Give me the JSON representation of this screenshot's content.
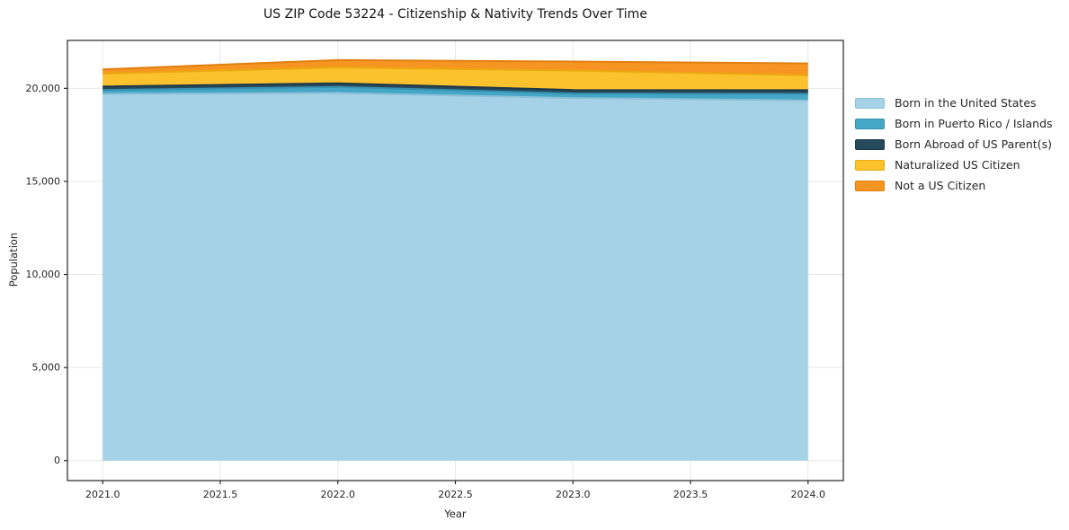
{
  "chart_data": {
    "type": "area",
    "stacked": true,
    "title": "US ZIP Code 53224 - Citizenship & Nativity Trends Over Time",
    "xlabel": "Year",
    "ylabel": "Population",
    "x": [
      2021,
      2022,
      2023,
      2024
    ],
    "series": [
      {
        "name": "Born in the United States",
        "color": "#a6d2e7",
        "edge": "#8cc0d9",
        "values": [
          19700,
          19750,
          19480,
          19350
        ]
      },
      {
        "name": "Born in Puerto Rico / Islands",
        "color": "#45a7c6",
        "edge": "#3691b0",
        "values": [
          210,
          330,
          240,
          350
        ]
      },
      {
        "name": "Born Abroad of US Parent(s)",
        "color": "#27495c",
        "edge": "#1d3a4a",
        "values": [
          190,
          190,
          190,
          200
        ]
      },
      {
        "name": "Naturalized US Citizen",
        "color": "#fcc22e",
        "edge": "#eba90f",
        "values": [
          690,
          850,
          1050,
          800
        ]
      },
      {
        "name": "Not a US Citizen",
        "color": "#f79522",
        "edge": "#e17f10",
        "values": [
          230,
          400,
          480,
          640
        ]
      }
    ],
    "xlim": [
      2020.85,
      2024.15
    ],
    "ylim": [
      -1075,
      22575
    ],
    "xticks": {
      "values": [
        2021.0,
        2021.5,
        2022.0,
        2022.5,
        2023.0,
        2023.5,
        2024.0
      ],
      "labels": [
        "2021.0",
        "2021.5",
        "2022.0",
        "2022.5",
        "2023.0",
        "2023.5",
        "2024.0"
      ]
    },
    "yticks": {
      "values": [
        0,
        5000,
        10000,
        15000,
        20000
      ],
      "labels": [
        "0",
        "5,000",
        "10,000",
        "15,000",
        "20,000"
      ]
    },
    "grid": true,
    "grid_color": "#e7e7e7",
    "spine_color": "#262626",
    "tick_text_color": "#262626",
    "legend_position": "right"
  }
}
